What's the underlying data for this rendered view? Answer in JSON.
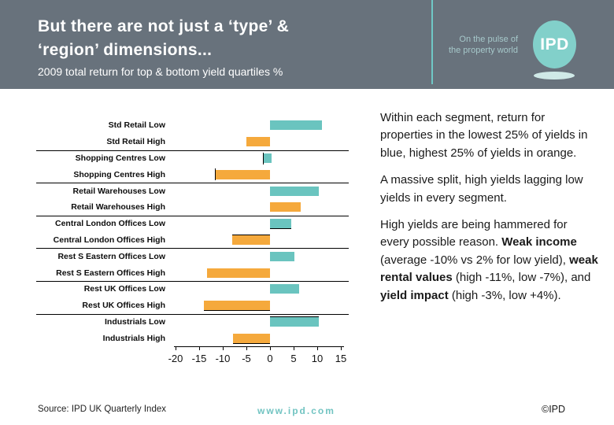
{
  "header": {
    "title_line1": "But there are not just a ‘type’ &",
    "title_line2": "‘region’ dimensions...",
    "subtitle": "2009 total return for top & bottom yield quartiles %",
    "tagline_line1": "On the pulse of",
    "tagline_line2": "the property world",
    "logo_text": "IPD"
  },
  "colors": {
    "header_bg": "#68727C",
    "teal": "#6AC4BF",
    "orange": "#F5A93C",
    "logo_teal": "#82D0CA",
    "divider_teal": "#6FC8C6",
    "tagline_teal": "#A6C8CA",
    "footer_link": "#72C4C2"
  },
  "chart_data": {
    "type": "bar",
    "orientation": "horizontal",
    "title": "2009 total return for top & bottom yield quartiles %",
    "xlabel": "",
    "ylabel": "",
    "xlim": [
      -20,
      15
    ],
    "x_ticks": [
      -20,
      -15,
      -10,
      -5,
      0,
      5,
      10,
      15
    ],
    "unit": "%",
    "legend_note": "teal/blue = lowest 25% of yields, orange = highest 25% of yields",
    "bars": [
      {
        "label": "Std Retail Low",
        "value": 11,
        "color": "teal"
      },
      {
        "label": "Std Retail High",
        "value": -5,
        "color": "orange"
      },
      {
        "label": "Shopping Centres Low",
        "value": 0.3,
        "draw_from": -1.3,
        "color": "teal",
        "accent": "left-tick"
      },
      {
        "label": "Shopping Centres High",
        "value": -11.5,
        "color": "orange",
        "accent": "left-tick"
      },
      {
        "label": "Retail Warehouses Low",
        "value": 10.3,
        "color": "teal"
      },
      {
        "label": "Retail Warehouses High",
        "value": 6.5,
        "color": "orange"
      },
      {
        "label": "Central London Offices Low",
        "value": 4.5,
        "color": "teal",
        "accent": "bottom"
      },
      {
        "label": "Central London Offices High",
        "value": -8,
        "color": "orange",
        "accent": "top"
      },
      {
        "label": "Rest S Eastern Offices Low",
        "value": 5.2,
        "color": "teal"
      },
      {
        "label": "Rest S Eastern Offices High",
        "value": -13.3,
        "color": "orange"
      },
      {
        "label": "Rest UK Offices Low",
        "value": 6.2,
        "color": "teal"
      },
      {
        "label": "Rest UK Offices High",
        "value": -14,
        "color": "orange",
        "accent": "bottom"
      },
      {
        "label": "Industrials Low",
        "value": 10.4,
        "color": "teal",
        "accent": "top"
      },
      {
        "label": "Industrials High",
        "value": -7.8,
        "color": "orange",
        "accent": "bottom"
      }
    ],
    "group_separators_after": [
      1,
      3,
      5,
      7,
      9,
      11
    ]
  },
  "side_text": {
    "p1": "Within each segment, return for properties in the lowest 25% of yields in blue, highest 25% of yields in orange.",
    "p2": "A massive split, high yields lagging low yields in every segment.",
    "p3_runs": [
      {
        "text": "High yields are being hammered for every possible reason. ",
        "bold": false
      },
      {
        "text": "Weak income",
        "bold": true
      },
      {
        "text": " (average -10% vs 2% for low yield), ",
        "bold": false
      },
      {
        "text": "weak rental values",
        "bold": true
      },
      {
        "text": " (high -11%, low -7%), and ",
        "bold": false
      },
      {
        "text": "yield impact",
        "bold": true
      },
      {
        "text": " (high -3%, low +4%).",
        "bold": false
      }
    ]
  },
  "footer": {
    "source": "Source: IPD UK Quarterly Index",
    "website": "www.ipd.com",
    "copyright": "©IPD"
  }
}
